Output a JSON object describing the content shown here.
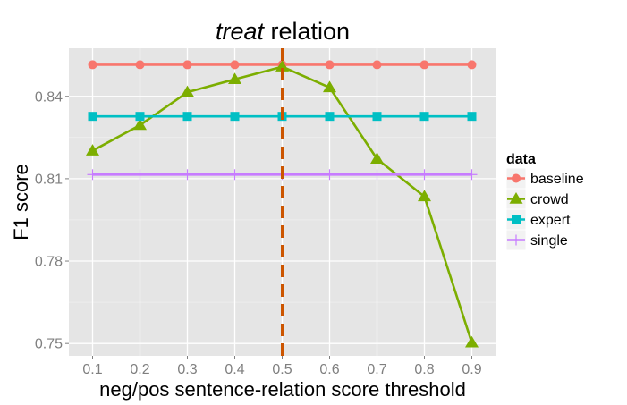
{
  "chart_data": {
    "type": "line",
    "title_italic": "treat",
    "title_rest": " relation",
    "xlabel": "neg/pos sentence-relation score threshold",
    "ylabel": "F1 score",
    "x": [
      0.1,
      0.2,
      0.3,
      0.4,
      0.5,
      0.6,
      0.7,
      0.8,
      0.9
    ],
    "x_tick_labels": [
      "0.1",
      "0.2",
      "0.3",
      "0.4",
      "0.5",
      "0.6",
      "0.7",
      "0.8",
      "0.9"
    ],
    "y_ticks": [
      0.75,
      0.78,
      0.81,
      0.84
    ],
    "y_tick_labels": [
      "0.75",
      "0.78",
      "0.81",
      "0.84"
    ],
    "xlim": [
      0.05,
      0.95
    ],
    "ylim": [
      0.7455,
      0.8575
    ],
    "grid": true,
    "legend_title": "data",
    "legend_position": "right",
    "vline": {
      "x": 0.5,
      "color": "#CC5500",
      "style": "dashed"
    },
    "series": [
      {
        "name": "baseline",
        "color": "#F8766D",
        "marker": "circle",
        "values": [
          0.8515,
          0.8515,
          0.8515,
          0.8515,
          0.8515,
          0.8515,
          0.8515,
          0.8515,
          0.8515
        ]
      },
      {
        "name": "crowd",
        "color": "#7CAE00",
        "marker": "triangle",
        "values": [
          0.8202,
          0.8295,
          0.8415,
          0.8462,
          0.8508,
          0.8432,
          0.8172,
          0.8035,
          0.7503
        ]
      },
      {
        "name": "expert",
        "color": "#00BFC4",
        "marker": "square",
        "values": [
          0.8327,
          0.8327,
          0.8327,
          0.8327,
          0.8327,
          0.8327,
          0.8327,
          0.8327,
          0.8327
        ]
      },
      {
        "name": "single",
        "color": "#C77CFF",
        "marker": "cross",
        "values": [
          0.8115,
          0.8115,
          0.8115,
          0.8115,
          0.8115,
          0.8115,
          0.8115,
          0.8115,
          0.8115
        ]
      }
    ]
  }
}
